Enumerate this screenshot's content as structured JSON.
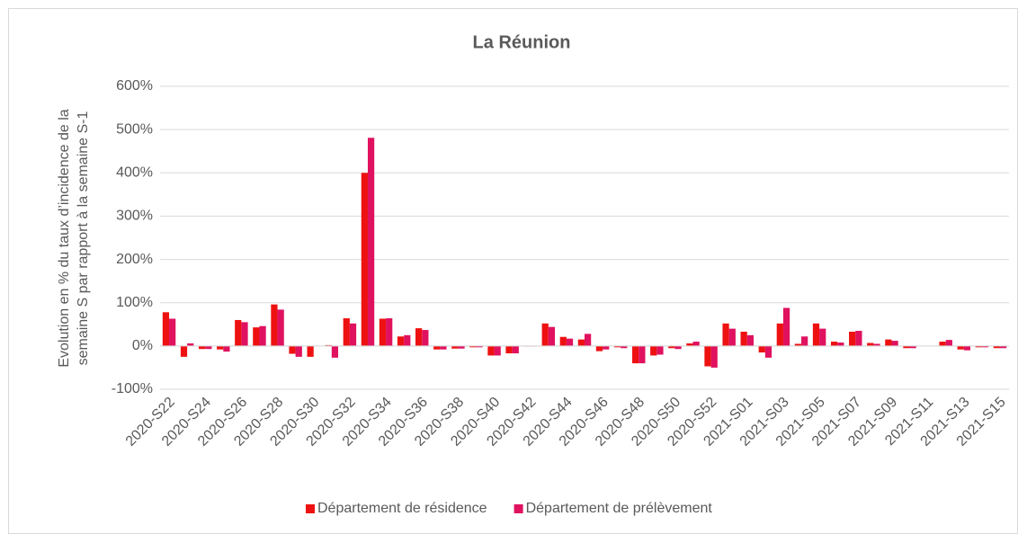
{
  "chart_data": {
    "type": "bar",
    "title": "La Réunion",
    "y_label": [
      "Evolution en % du taux d’incidence de la",
      "semaine S par rapport à la semaine S-1"
    ],
    "categories": [
      "2020-S22",
      null,
      "2020-S24",
      null,
      "2020-S26",
      null,
      "2020-S28",
      null,
      "2020-S30",
      null,
      "2020-S32",
      null,
      "2020-S34",
      null,
      "2020-S36",
      null,
      "2020-S38",
      null,
      "2020-S40",
      null,
      "2020-S42",
      null,
      "2020-S44",
      null,
      "2020-S46",
      null,
      "2020-S48",
      null,
      "2020-S50",
      null,
      "2020-S52",
      null,
      "2021-S01",
      null,
      "2021-S03",
      null,
      "2021-S05",
      null,
      "2021-S07",
      null,
      "2021-S09",
      null,
      "2021-S11",
      null,
      "2021-S13",
      null,
      "2021-S15"
    ],
    "series": [
      {
        "name": "Département de résidence",
        "color": "#ee1111",
        "values": [
          78,
          -25,
          -7,
          -8,
          60,
          43,
          96,
          -18,
          -25,
          2,
          64,
          400,
          63,
          22,
          41,
          -8,
          -6,
          -3,
          -22,
          -17,
          -1,
          52,
          21,
          15,
          -12,
          -3,
          -40,
          -22,
          -5,
          6,
          -47,
          52,
          33,
          -15,
          52,
          5,
          52,
          10,
          33,
          7,
          15,
          -5,
          0,
          10,
          -8,
          -3,
          -5
        ]
      },
      {
        "name": "Département de prélèvement",
        "color": "#e0115f",
        "values": [
          63,
          6,
          -7,
          -13,
          55,
          46,
          84,
          -25,
          0,
          -27,
          52,
          481,
          64,
          25,
          37,
          -8,
          -6,
          -3,
          -22,
          -17,
          -1,
          44,
          17,
          28,
          -8,
          -5,
          -40,
          -20,
          -7,
          10,
          -50,
          40,
          25,
          -27,
          88,
          22,
          40,
          8,
          35,
          5,
          12,
          -5,
          0,
          14,
          -10,
          -3,
          -5
        ]
      }
    ],
    "ylim": [
      -100,
      600
    ],
    "yticks": [
      {
        "value": -100,
        "label": "-100%"
      },
      {
        "value": 0,
        "label": "0%"
      },
      {
        "value": 100,
        "label": "100%"
      },
      {
        "value": 200,
        "label": "200%"
      },
      {
        "value": 300,
        "label": "300%"
      },
      {
        "value": 400,
        "label": "400%"
      },
      {
        "value": 500,
        "label": "500%"
      },
      {
        "value": 600,
        "label": "600%"
      }
    ],
    "grid": true,
    "legend": "bottom"
  }
}
